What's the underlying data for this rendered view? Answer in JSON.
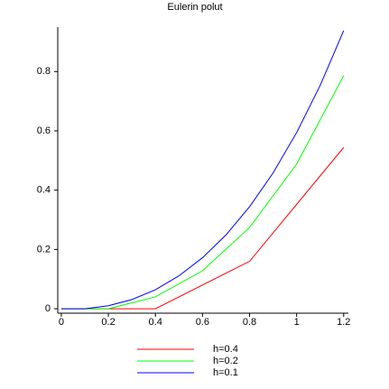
{
  "chart_data": {
    "type": "line",
    "title": "Eulerin polut",
    "series": [
      {
        "name": "h=0.4",
        "color": "#ff0000",
        "x": [
          0,
          0.4,
          0.8,
          1.2
        ],
        "values": [
          0,
          0,
          0.16,
          0.544
        ]
      },
      {
        "name": "h=0.2",
        "color": "#00ff00",
        "x": [
          0,
          0.2,
          0.4,
          0.6,
          0.8,
          1.0,
          1.2
        ],
        "values": [
          0,
          0,
          0.04,
          0.128,
          0.274,
          0.488,
          0.786
        ]
      },
      {
        "name": "h=0.1",
        "color": "#0000ff",
        "x": [
          0,
          0.1,
          0.2,
          0.3,
          0.4,
          0.5,
          0.6,
          0.7,
          0.8,
          0.9,
          1.0,
          1.1,
          1.2
        ],
        "values": [
          0,
          0,
          0.01,
          0.031,
          0.064,
          0.111,
          0.172,
          0.249,
          0.344,
          0.458,
          0.594,
          0.753,
          0.938
        ]
      }
    ],
    "xlim": [
      -0.015,
      1.22
    ],
    "ylim": [
      -0.015,
      0.95
    ],
    "xticks": [
      0,
      0.2,
      0.4,
      0.6,
      0.8,
      1,
      1.2
    ],
    "yticks": [
      0,
      0.2,
      0.4,
      0.6,
      0.8
    ],
    "legend": "bottom"
  }
}
